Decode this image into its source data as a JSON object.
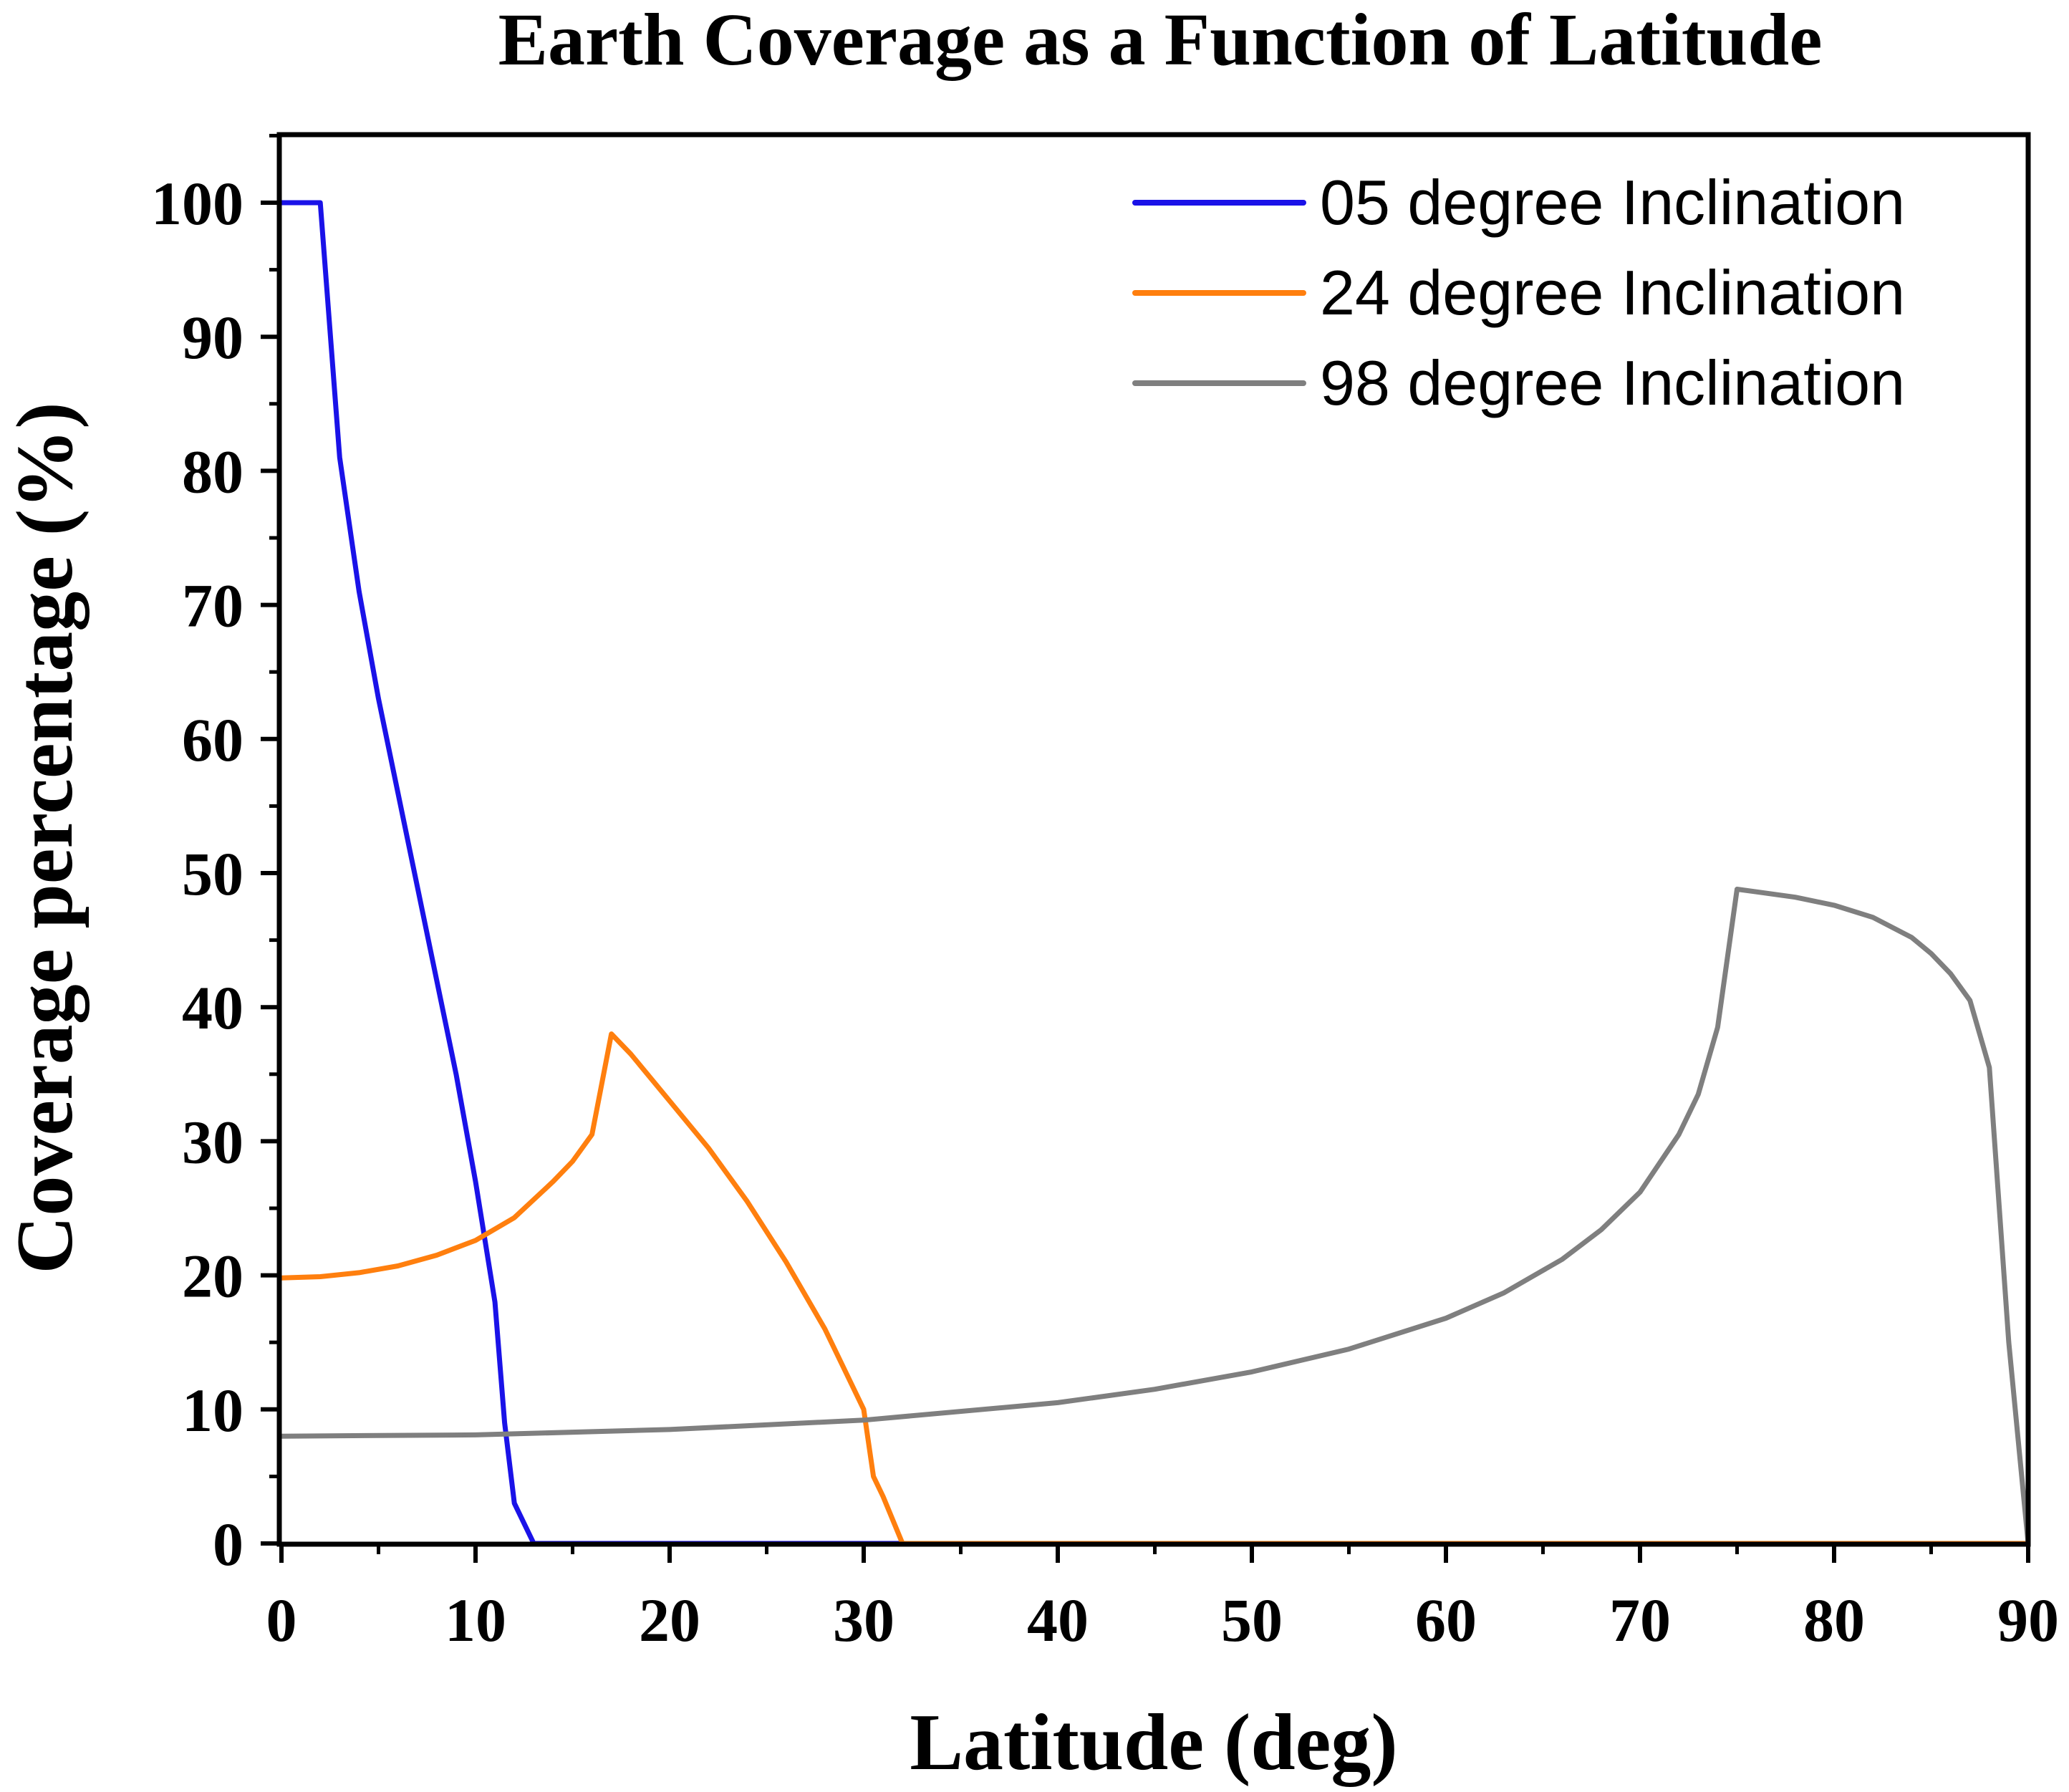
{
  "chart_data": {
    "type": "line",
    "title": "Earth Coverage as a Function of Latitude",
    "xlabel": "Latitude (deg)",
    "ylabel": "Coverage percentage (%)",
    "xlim": [
      0,
      90
    ],
    "ylim": [
      0,
      105
    ],
    "xticks": [
      0,
      10,
      20,
      30,
      40,
      50,
      60,
      70,
      80,
      90
    ],
    "yticks": [
      0,
      10,
      20,
      30,
      40,
      50,
      60,
      70,
      80,
      90,
      100
    ],
    "grid": false,
    "legend_position": "top-right",
    "series": [
      {
        "name": "05 degree Inclination",
        "color": "#1a12e8",
        "x": [
          0,
          2,
          3,
          4,
          5,
          6,
          7,
          8,
          9,
          10,
          11,
          11.5,
          12,
          13,
          14,
          20,
          30,
          32,
          40,
          50,
          60,
          70,
          80,
          90
        ],
        "y": [
          100,
          100,
          81,
          71,
          63,
          56,
          49,
          42,
          35,
          27,
          18,
          9,
          3,
          0,
          0,
          0,
          0,
          0,
          0,
          0,
          0,
          0,
          0,
          0
        ]
      },
      {
        "name": "24 degree Inclination",
        "color": "#ff7f0e",
        "x": [
          0,
          2,
          4,
          6,
          8,
          10,
          12,
          14,
          15,
          16,
          17,
          18,
          20,
          22,
          24,
          26,
          28,
          29,
          30,
          30.5,
          31,
          32,
          40,
          50,
          60,
          70,
          80,
          90
        ],
        "y": [
          19.8,
          19.9,
          20.2,
          20.7,
          21.5,
          22.6,
          24.3,
          27,
          28.5,
          30.5,
          38,
          36.5,
          33,
          29.5,
          25.5,
          21,
          16,
          13,
          10,
          5,
          3.5,
          0,
          0,
          0,
          0,
          0,
          0,
          0
        ],
        "y_fix_note": ""
      },
      {
        "name": "98 degree Inclination",
        "color": "#7f7f7f",
        "x": [
          0,
          10,
          20,
          30,
          40,
          45,
          50,
          55,
          60,
          63,
          66,
          68,
          70,
          72,
          73,
          74,
          75,
          76,
          78,
          80,
          82,
          84,
          85,
          86,
          87,
          88,
          89,
          90
        ],
        "y": [
          8,
          8.1,
          8.5,
          9.2,
          10.5,
          11.5,
          12.8,
          14.5,
          16.8,
          18.7,
          21.2,
          23.4,
          26.2,
          30.5,
          33.5,
          38.5,
          48.8,
          48.6,
          48.2,
          47.6,
          46.7,
          45.2,
          44,
          42.5,
          40.5,
          35.5,
          15,
          0
        ]
      }
    ]
  }
}
